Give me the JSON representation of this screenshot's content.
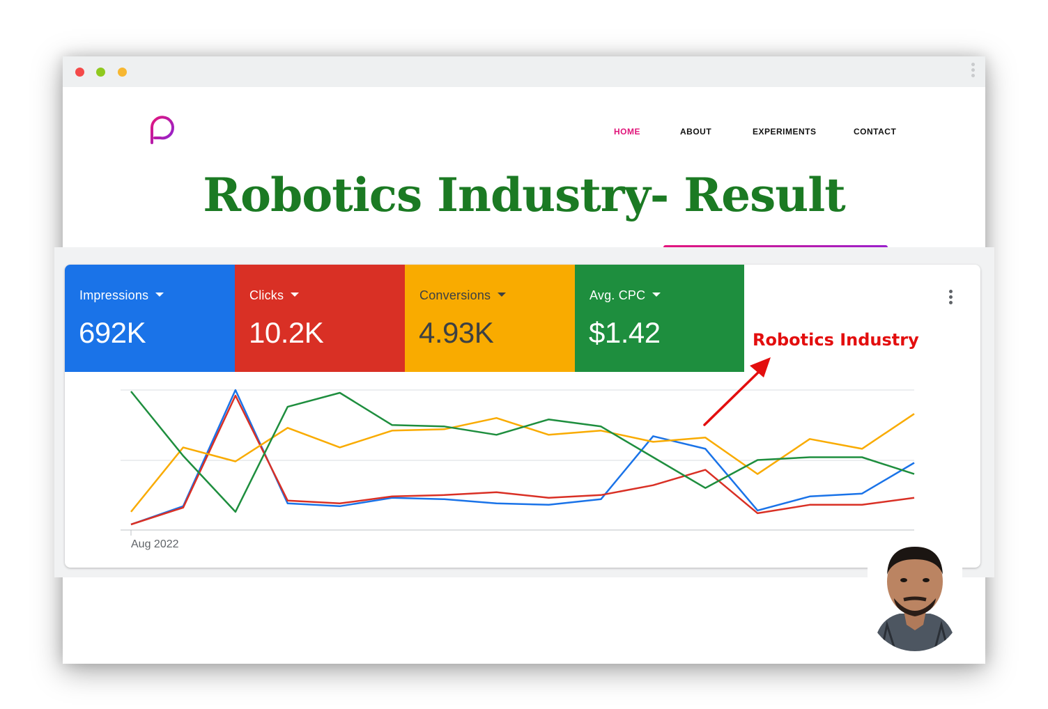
{
  "nav": {
    "home": "HOME",
    "about": "ABOUT",
    "experiments": "EXPERIMENTS",
    "contact": "CONTACT"
  },
  "headline": "Robotics Industry- Result",
  "metrics": [
    {
      "label": "Impressions",
      "value": "692K",
      "color": "#1a73e8"
    },
    {
      "label": "Clicks",
      "value": "10.2K",
      "color": "#d93025"
    },
    {
      "label": "Conversions",
      "value": "4.93K",
      "color": "#f9ab00"
    },
    {
      "label": "Avg. CPC",
      "value": "$1.42",
      "color": "#1e8e3e"
    }
  ],
  "annotation": "Robotics Industry",
  "chart_data": {
    "type": "line",
    "x_tick_label": "Aug 2022",
    "ylim": [
      0,
      100
    ],
    "grid": true,
    "series": [
      {
        "color": "#1a73e8",
        "values": [
          4,
          17,
          100,
          19,
          17,
          23,
          22,
          19,
          18,
          22,
          67,
          58,
          14,
          24,
          26,
          48
        ]
      },
      {
        "color": "#d93025",
        "values": [
          4,
          16,
          96,
          21,
          19,
          24,
          25,
          27,
          23,
          25,
          32,
          43,
          12,
          18,
          18,
          23
        ]
      },
      {
        "color": "#f9ab00",
        "values": [
          13,
          59,
          49,
          73,
          59,
          71,
          72,
          80,
          68,
          71,
          63,
          66,
          40,
          65,
          58,
          83
        ]
      },
      {
        "color": "#1e8e3e",
        "values": [
          99,
          53,
          13,
          88,
          98,
          75,
          74,
          68,
          79,
          74,
          52,
          30,
          50,
          52,
          52,
          40
        ]
      }
    ]
  }
}
